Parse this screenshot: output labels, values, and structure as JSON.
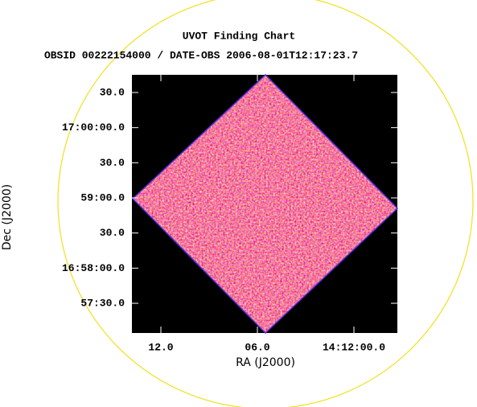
{
  "chart_data": {
    "type": "image",
    "title": "UVOT Finding Chart",
    "subtitle": "OBSID 00222154000 / DATE-OBS 2006-08-01T12:17:23.7",
    "x_label": "RA (J2000)",
    "y_label": "Dec (J2000)",
    "xlim": [
      213.0575,
      212.98875
    ],
    "ylim": [
      16.95128,
      17.01253
    ],
    "xticks": [
      {
        "value": 213.05,
        "label": "12.0"
      },
      {
        "value": 213.025,
        "label": "06.0"
      },
      {
        "value": 213.0,
        "label": "14:12:00.0"
      }
    ],
    "yticks": [
      {
        "value": 16.958333,
        "label": "57:30.0"
      },
      {
        "value": 16.966667,
        "label": "16:58:00.0"
      },
      {
        "value": 16.975,
        "label": "30.0"
      },
      {
        "value": 16.983333,
        "label": "59:00.0"
      },
      {
        "value": 16.991667,
        "label": "30.0"
      },
      {
        "value": 17.0,
        "label": "17:00:00.0"
      },
      {
        "value": 17.008333,
        "label": "30.0"
      }
    ]
  }
}
